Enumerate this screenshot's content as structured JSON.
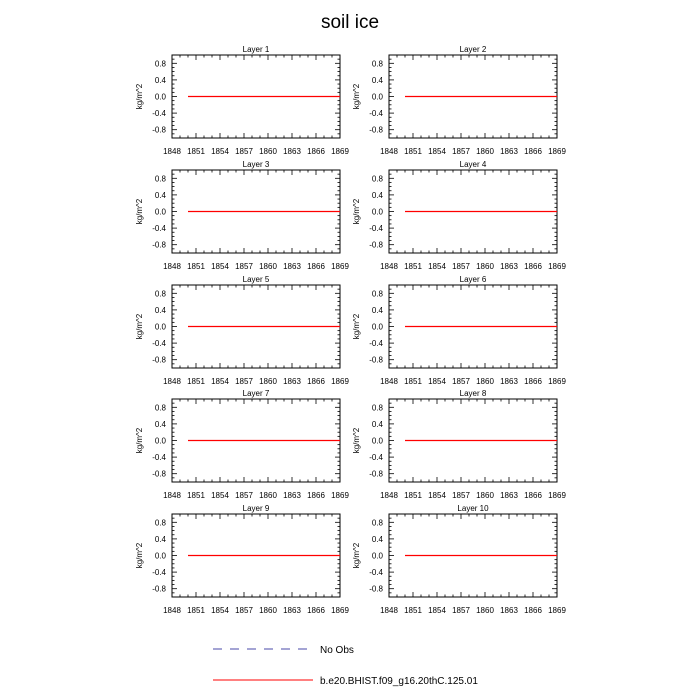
{
  "figure": {
    "title": "soil ice"
  },
  "chart_data": {
    "type": "line",
    "xlim": [
      1848,
      1869
    ],
    "xticks": [
      1848,
      1851,
      1854,
      1857,
      1860,
      1863,
      1866,
      1869
    ],
    "ylim": [
      -1.0,
      1.0
    ],
    "yticks": [
      -0.8,
      -0.4,
      0.0,
      0.4,
      0.8
    ],
    "ylabel": "kg/m^2",
    "grid": false,
    "panels": [
      {
        "title": "Layer 1",
        "series": [
          {
            "name": "b.e20.BHIST.f09_g16.20thC.125.01",
            "color": "#ff0000",
            "x": [
              1850,
              1869
            ],
            "y": [
              0.0,
              0.0
            ]
          }
        ]
      },
      {
        "title": "Layer 2",
        "series": [
          {
            "name": "b.e20.BHIST.f09_g16.20thC.125.01",
            "color": "#ff0000",
            "x": [
              1850,
              1869
            ],
            "y": [
              0.0,
              0.0
            ]
          }
        ]
      },
      {
        "title": "Layer 3",
        "series": [
          {
            "name": "b.e20.BHIST.f09_g16.20thC.125.01",
            "color": "#ff0000",
            "x": [
              1850,
              1869
            ],
            "y": [
              0.0,
              0.0
            ]
          }
        ]
      },
      {
        "title": "Layer 4",
        "series": [
          {
            "name": "b.e20.BHIST.f09_g16.20thC.125.01",
            "color": "#ff0000",
            "x": [
              1850,
              1869
            ],
            "y": [
              0.0,
              0.0
            ]
          }
        ]
      },
      {
        "title": "Layer 5",
        "series": [
          {
            "name": "b.e20.BHIST.f09_g16.20thC.125.01",
            "color": "#ff0000",
            "x": [
              1850,
              1869
            ],
            "y": [
              0.0,
              0.0
            ]
          }
        ]
      },
      {
        "title": "Layer 6",
        "series": [
          {
            "name": "b.e20.BHIST.f09_g16.20thC.125.01",
            "color": "#ff0000",
            "x": [
              1850,
              1869
            ],
            "y": [
              0.0,
              0.0
            ]
          }
        ]
      },
      {
        "title": "Layer 7",
        "series": [
          {
            "name": "b.e20.BHIST.f09_g16.20thC.125.01",
            "color": "#ff0000",
            "x": [
              1850,
              1869
            ],
            "y": [
              0.0,
              0.0
            ]
          }
        ]
      },
      {
        "title": "Layer 8",
        "series": [
          {
            "name": "b.e20.BHIST.f09_g16.20thC.125.01",
            "color": "#ff0000",
            "x": [
              1850,
              1869
            ],
            "y": [
              0.0,
              0.0
            ]
          }
        ]
      },
      {
        "title": "Layer 9",
        "series": [
          {
            "name": "b.e20.BHIST.f09_g16.20thC.125.01",
            "color": "#ff0000",
            "x": [
              1850,
              1869
            ],
            "y": [
              0.0,
              0.0
            ]
          }
        ]
      },
      {
        "title": "Layer 10",
        "series": [
          {
            "name": "b.e20.BHIST.f09_g16.20thC.125.01",
            "color": "#ff0000",
            "x": [
              1850,
              1869
            ],
            "y": [
              0.0,
              0.0
            ]
          }
        ]
      }
    ],
    "legend": {
      "placement": "bottom-center",
      "entries": [
        {
          "label": "No Obs",
          "style": "dashed",
          "color": "#4a4aa8"
        },
        {
          "label": "b.e20.BHIST.f09_g16.20thC.125.01",
          "style": "solid",
          "color": "#ff0000"
        }
      ]
    }
  }
}
